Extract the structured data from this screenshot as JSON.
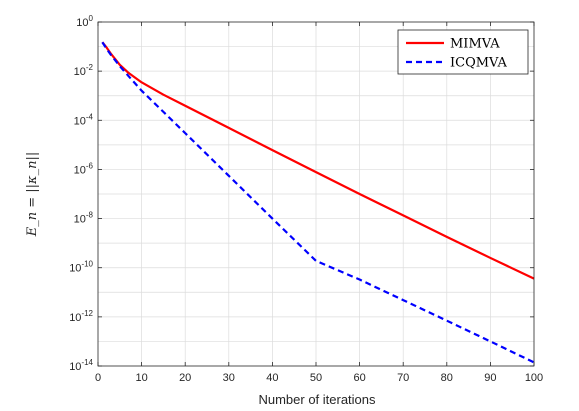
{
  "chart_data": {
    "type": "line",
    "title": "",
    "xlabel": "Number of iterations",
    "ylabel": "E_n = ||κ_n||",
    "xlim": [
      0,
      100
    ],
    "ylim": [
      1e-14,
      1
    ],
    "yscale": "log",
    "grid": true,
    "legend_position": "top-right",
    "x_ticks": [
      0,
      10,
      20,
      30,
      40,
      50,
      60,
      70,
      80,
      90,
      100
    ],
    "y_ticks": [
      {
        "base": "10",
        "exp": "0"
      },
      {
        "base": "10",
        "exp": "-2"
      },
      {
        "base": "10",
        "exp": "-4"
      },
      {
        "base": "10",
        "exp": "-6"
      },
      {
        "base": "10",
        "exp": "-8"
      },
      {
        "base": "10",
        "exp": "-10"
      },
      {
        "base": "10",
        "exp": "-12"
      },
      {
        "base": "10",
        "exp": "-14"
      }
    ],
    "series": [
      {
        "name": "MIMVA",
        "color": "#ff0000",
        "style": "solid",
        "x": [
          1,
          2,
          3,
          5,
          7,
          10,
          15,
          20,
          30,
          40,
          50,
          60,
          70,
          80,
          90,
          100
        ],
        "y": [
          0.15,
          0.09,
          0.05,
          0.018,
          0.0085,
          0.0035,
          0.0011,
          0.00039,
          4.9e-05,
          6.1e-06,
          7.8e-07,
          1e-07,
          1.35e-08,
          1.8e-09,
          2.5e-10,
          3.6e-11
        ]
      },
      {
        "name": "ICQMVA",
        "color": "#0000ff",
        "style": "dashed",
        "x": [
          1,
          2,
          3,
          5,
          7,
          10,
          15,
          20,
          30,
          40,
          50,
          60,
          70,
          80,
          90,
          100
        ],
        "y": [
          0.15,
          0.08,
          0.045,
          0.016,
          0.0063,
          0.0016,
          0.00022,
          3e-05,
          5.5e-07,
          1e-08,
          1.9e-10,
          3.3e-11,
          4.8e-12,
          7e-13,
          1e-13,
          1.4e-14
        ]
      }
    ]
  }
}
